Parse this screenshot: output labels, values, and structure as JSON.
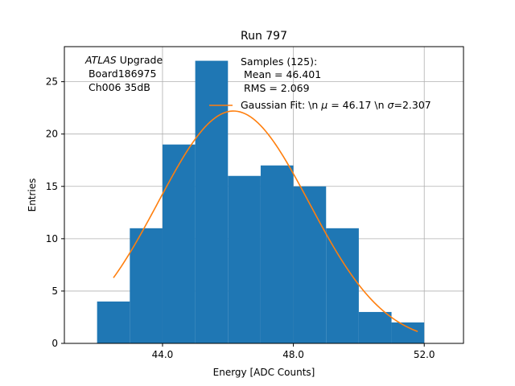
{
  "colors": {
    "bar": "#1f77b4",
    "fit": "#ff7f0e",
    "grid": "#b0b0b0",
    "axis": "#000000"
  },
  "chart_data": {
    "type": "bar",
    "title": "Run 797",
    "xlabel": "Energy [ADC Counts]",
    "ylabel": "Entries",
    "xlim": [
      41.0,
      53.2
    ],
    "ylim": [
      0,
      28.35
    ],
    "xticks": [
      44.0,
      48.0,
      52.0
    ],
    "xtick_labels": [
      "44.0",
      "48.0",
      "52.0"
    ],
    "yticks": [
      0,
      5,
      10,
      15,
      20,
      25
    ],
    "ytick_labels": [
      "0",
      "5",
      "10",
      "15",
      "20",
      "25"
    ],
    "grid": true,
    "histogram": {
      "bin_edges": [
        42.0,
        43.0,
        44.0,
        45.0,
        46.0,
        47.0,
        48.0,
        49.0,
        50.0,
        51.0,
        52.0
      ],
      "counts": [
        4,
        11,
        19,
        27,
        16,
        17,
        15,
        11,
        3,
        2
      ]
    },
    "fit": {
      "name": "Gaussian Fit",
      "mu": 46.17,
      "sigma": 2.307,
      "x_range": [
        42.5,
        51.8
      ],
      "peak": 22.2
    },
    "annotation": {
      "experiment": "ATLAS",
      "experiment_suffix": " Upgrade",
      "board": " Board186975",
      "channel": " Ch006 35dB"
    },
    "legend": {
      "samples_line1": "Samples (125):",
      "samples_line2": " Mean = 46.401",
      "samples_line3": " RMS = 2.069",
      "fit_prefix": "Gaussian Fit: \\n ",
      "fit_mu_symbol": "μ",
      "fit_mid": " = 46.17 \\n ",
      "fit_sigma_symbol": "σ",
      "fit_suffix": "=2.307"
    }
  }
}
